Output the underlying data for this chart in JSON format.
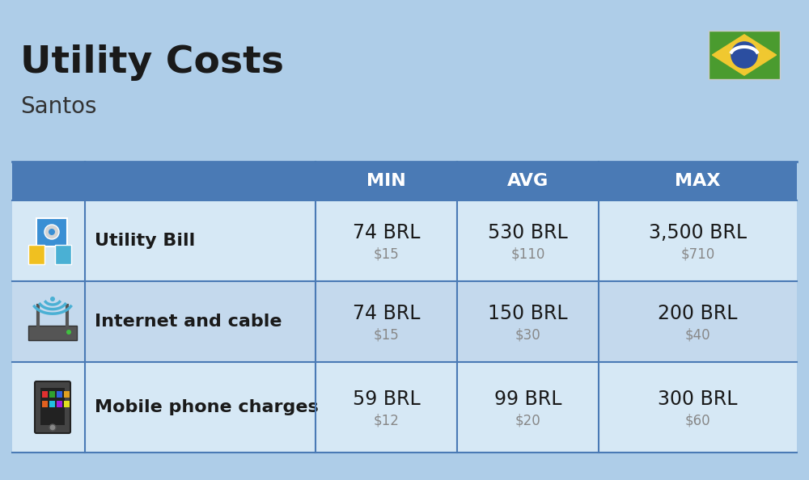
{
  "title": "Utility Costs",
  "subtitle": "Santos",
  "background_color": "#aecde8",
  "header_color": "#4a7ab5",
  "header_text_color": "#ffffff",
  "row_colors": [
    "#d6e8f5",
    "#c4d9ed"
  ],
  "table_border_color": "#4a7ab5",
  "col_headers": [
    "MIN",
    "AVG",
    "MAX"
  ],
  "rows": [
    {
      "label": "Utility Bill",
      "min_brl": "74 BRL",
      "min_usd": "$15",
      "avg_brl": "530 BRL",
      "avg_usd": "$110",
      "max_brl": "3,500 BRL",
      "max_usd": "$710"
    },
    {
      "label": "Internet and cable",
      "min_brl": "74 BRL",
      "min_usd": "$15",
      "avg_brl": "150 BRL",
      "avg_usd": "$30",
      "max_brl": "200 BRL",
      "max_usd": "$40"
    },
    {
      "label": "Mobile phone charges",
      "min_brl": "59 BRL",
      "min_usd": "$12",
      "avg_brl": "99 BRL",
      "avg_usd": "$20",
      "max_brl": "300 BRL",
      "max_usd": "$60"
    }
  ],
  "brl_fontsize": 17,
  "usd_fontsize": 12,
  "usd_color": "#888888",
  "label_fontsize": 16,
  "title_fontsize": 34,
  "subtitle_fontsize": 20
}
